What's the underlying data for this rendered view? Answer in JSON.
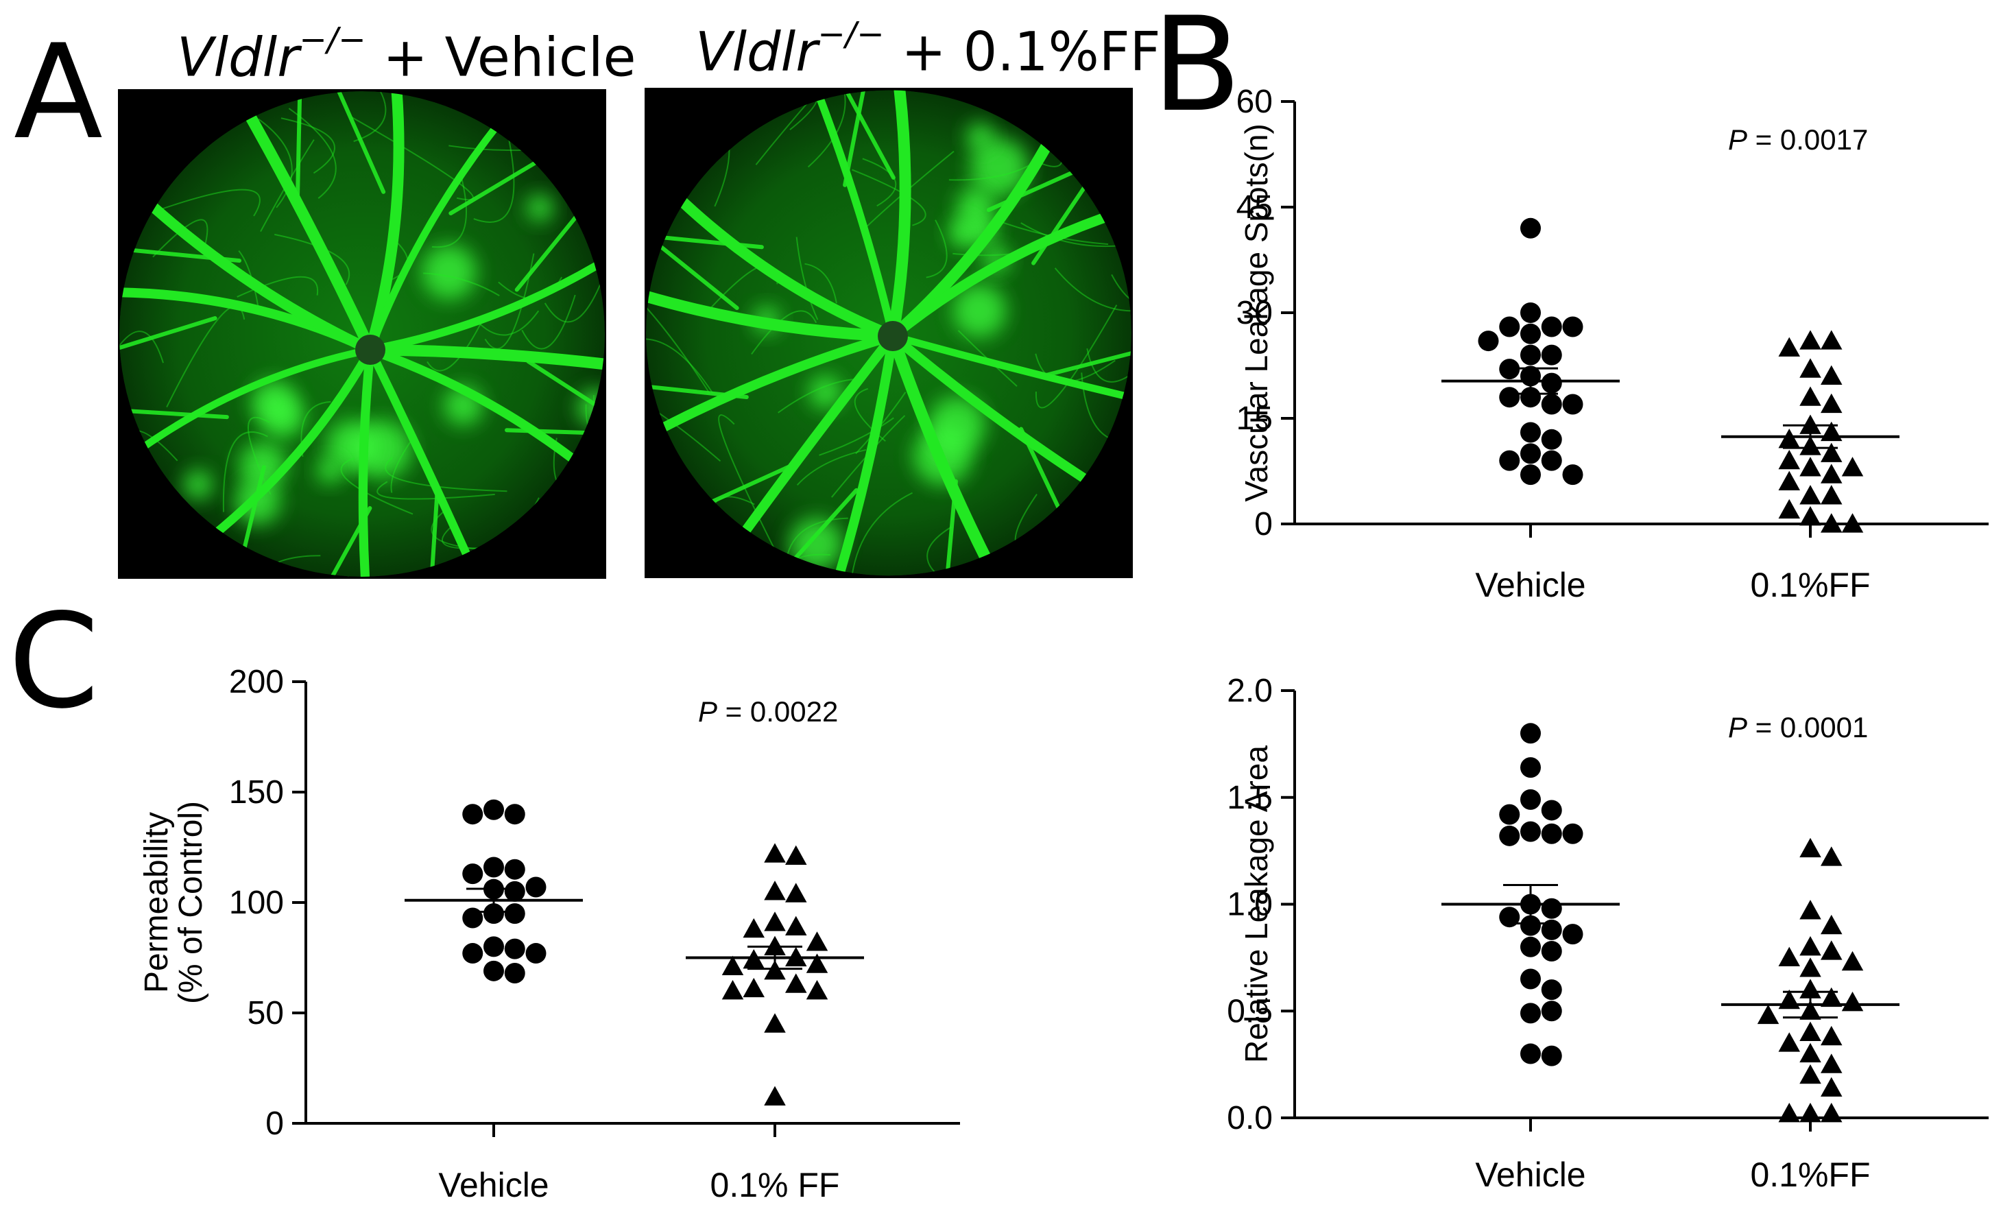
{
  "panels": {
    "a_letter": "A",
    "b_letter": "B",
    "c_letter": "C",
    "a_left_gene": "Vldlr",
    "a_left_sup": "−/−",
    "a_left_rest": " + Vehicle",
    "a_right_gene": "Vldlr",
    "a_right_sup": "−/−",
    "a_right_rest": " + 0.1%FF"
  },
  "colors": {
    "fundus_green": "#22e822",
    "fundus_bg": "#000000",
    "axis": "#000000"
  },
  "chart_data": [
    {
      "id": "leakage_spots",
      "type": "scatter",
      "ylabel": "Vascular Leakage Spots(n)",
      "categories": [
        "Vehicle",
        "0.1%FF"
      ],
      "ylim": [
        0,
        60
      ],
      "yticks": [
        0,
        15,
        30,
        45,
        60
      ],
      "ytick_labels": [
        "0",
        "15",
        "30",
        "45",
        "60"
      ],
      "p_label": "P",
      "p_value": " = 0.0017",
      "series": [
        {
          "category": "Vehicle",
          "marker": "circle",
          "values": [
            42,
            30,
            28,
            28,
            28,
            27,
            26,
            24,
            24,
            22,
            21,
            20,
            18,
            18,
            17,
            17,
            13,
            12,
            10,
            9,
            9,
            7,
            7
          ],
          "mean": 20.3,
          "sem": 1.8
        },
        {
          "category": "0.1%FF",
          "marker": "triangle",
          "values": [
            26,
            26,
            25,
            22,
            21,
            18,
            17,
            14,
            13,
            12,
            11,
            10,
            9,
            8,
            8,
            7,
            6,
            4,
            4,
            2,
            1,
            0,
            0
          ],
          "mean": 12.4,
          "sem": 1.6
        }
      ]
    },
    {
      "id": "permeability",
      "type": "scatter",
      "ylabel": "Permeability",
      "ylabel2": "(% of Control)",
      "categories": [
        "Vehicle",
        "0.1% FF"
      ],
      "ylim": [
        0,
        200
      ],
      "yticks": [
        0,
        50,
        100,
        150,
        200
      ],
      "ytick_labels": [
        "0",
        "50",
        "100",
        "150",
        "200"
      ],
      "p_label": "P",
      "p_value": " = 0.0022",
      "series": [
        {
          "category": "Vehicle",
          "marker": "circle",
          "values": [
            142,
            140,
            140,
            116,
            115,
            113,
            107,
            106,
            105,
            95,
            95,
            93,
            80,
            79,
            77,
            77,
            69,
            68
          ],
          "mean": 101,
          "sem": 5.2
        },
        {
          "category": "0.1% FF",
          "marker": "triangle",
          "values": [
            122,
            121,
            105,
            104,
            91,
            89,
            88,
            82,
            80,
            75,
            74,
            72,
            71,
            69,
            63,
            61,
            60,
            60,
            45,
            12
          ],
          "mean": 75,
          "sem": 5.0
        }
      ]
    },
    {
      "id": "leakage_area",
      "type": "scatter",
      "ylabel": "Relative Leakage Area",
      "categories": [
        "Vehicle",
        "0.1%FF"
      ],
      "ylim": [
        0,
        2.0
      ],
      "yticks": [
        0,
        0.5,
        1.0,
        1.5,
        2.0
      ],
      "ytick_labels": [
        "0.0",
        "0.5",
        "1.0",
        "1.5",
        "2.0"
      ],
      "p_label": "P",
      "p_value": " = 0.0001",
      "series": [
        {
          "category": "Vehicle",
          "marker": "circle",
          "values": [
            1.8,
            1.64,
            1.49,
            1.44,
            1.42,
            1.34,
            1.33,
            1.33,
            1.32,
            1.0,
            0.98,
            0.94,
            0.9,
            0.88,
            0.86,
            0.8,
            0.78,
            0.65,
            0.6,
            0.49,
            0.5,
            0.3,
            0.29
          ],
          "mean": 1.0,
          "sem": 0.09
        },
        {
          "category": "0.1%FF",
          "marker": "triangle",
          "values": [
            1.26,
            1.22,
            0.97,
            0.9,
            0.8,
            0.78,
            0.75,
            0.73,
            0.7,
            0.6,
            0.56,
            0.55,
            0.54,
            0.5,
            0.48,
            0.4,
            0.38,
            0.35,
            0.3,
            0.25,
            0.2,
            0.14,
            0.02,
            0.02,
            0.02
          ],
          "mean": 0.53,
          "sem": 0.06
        }
      ]
    }
  ]
}
